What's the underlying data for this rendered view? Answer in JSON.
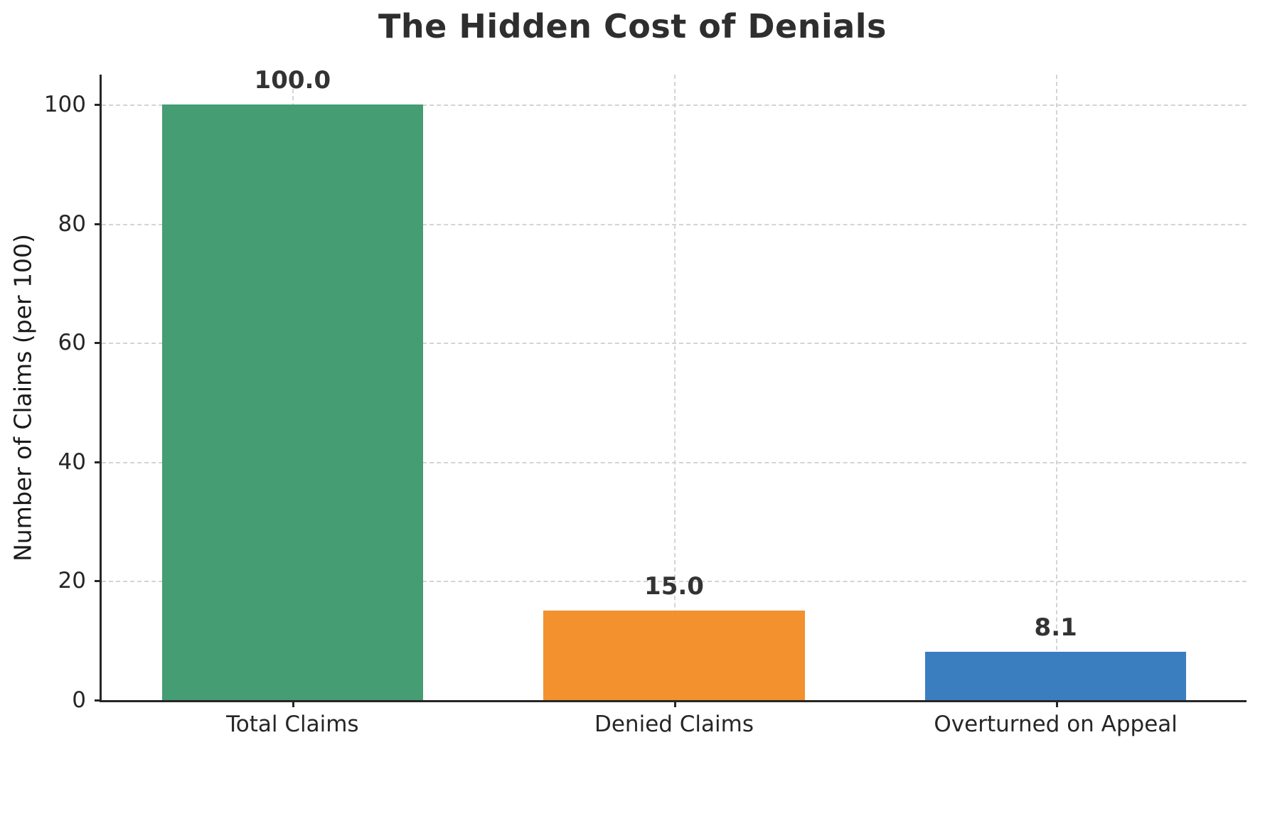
{
  "chart_data": {
    "type": "bar",
    "title": "The Hidden Cost of Denials",
    "ylabel": "Number of Claims (per 100)",
    "xlabel": "",
    "categories": [
      "Total Claims",
      "Denied Claims",
      "Overturned on Appeal"
    ],
    "values": [
      100.0,
      15.0,
      8.1
    ],
    "value_labels": [
      "100.0",
      "15.0",
      "8.1"
    ],
    "bar_colors": [
      "#459d73",
      "#f2912e",
      "#3a7ebf"
    ],
    "ylim": [
      0,
      105
    ],
    "yticks": [
      0,
      20,
      40,
      60,
      80,
      100
    ],
    "grid": "dashed horizontal and vertical",
    "legend": "none"
  }
}
